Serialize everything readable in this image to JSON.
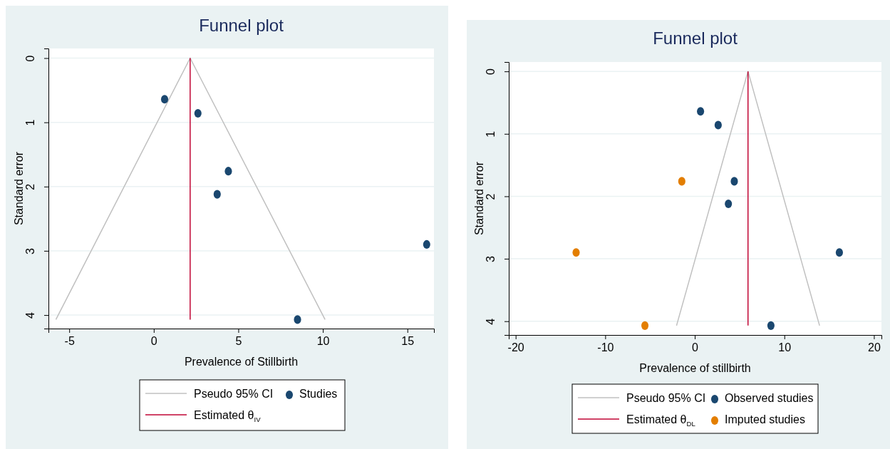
{
  "chart_data": [
    {
      "type": "scatter",
      "title": "Funnel plot",
      "xlabel": "Prevalence of Stillbirth",
      "ylabel": "Standard error",
      "xlim": [
        -6.23,
        16.57
      ],
      "xticks": [
        -5,
        0,
        5,
        10,
        15
      ],
      "ylim": [
        4.21,
        -0.15
      ],
      "yticks": [
        0,
        1,
        2,
        3,
        4
      ],
      "grid": "y",
      "legend": "bottom",
      "series": [
        {
          "name": "Pseudo 95% CI",
          "type": "line",
          "color": "#c0c0c0",
          "x": [
            -5.79,
            2.15,
            10.13
          ],
          "values": [
            4.07,
            0,
            4.07
          ]
        },
        {
          "name": "Studies",
          "marker": "circle",
          "color": "#1a476f",
          "x": [
            0.64,
            2.61,
            4.41,
            3.75,
            16.14,
            8.5
          ],
          "values": [
            0.64,
            0.86,
            1.76,
            2.12,
            2.9,
            4.07
          ]
        },
        {
          "name": "Estimated θ$_{IV}$",
          "type": "line",
          "color": "#c10534",
          "x": [
            2.15,
            2.15
          ],
          "values": [
            0,
            4.07
          ]
        }
      ]
    },
    {
      "type": "scatter",
      "title": "Funnel plot",
      "xlabel": "Prevalence of stillbirth",
      "ylabel": "Standard error",
      "xlim": [
        -20.77,
        20.84
      ],
      "xticks": [
        -20,
        -10,
        0,
        10,
        20
      ],
      "ylim": [
        4.22,
        -0.15
      ],
      "yticks": [
        0,
        1,
        2,
        3,
        4
      ],
      "grid": "y",
      "legend": "bottom",
      "series": [
        {
          "name": "Pseudo 95% CI",
          "type": "line",
          "color": "#c0c0c0",
          "x": [
            -2.04,
            5.94,
            13.93
          ],
          "values": [
            4.07,
            0,
            4.07
          ]
        },
        {
          "name": "Observed studies",
          "marker": "circle",
          "color": "#1a476f",
          "x": [
            0.64,
            2.61,
            4.41,
            3.75,
            16.14,
            8.5
          ],
          "values": [
            0.64,
            0.86,
            1.76,
            2.12,
            2.9,
            4.07
          ]
        },
        {
          "name": "Estimated θ$_{DL}$",
          "type": "line",
          "color": "#c10534",
          "x": [
            5.94,
            5.94
          ],
          "values": [
            0,
            4.07
          ]
        },
        {
          "name": "Imputed studies",
          "marker": "circle",
          "color": "#e37e00",
          "x": [
            -1.45,
            -13.25,
            -5.57
          ],
          "values": [
            1.76,
            2.9,
            4.07
          ]
        }
      ]
    }
  ]
}
